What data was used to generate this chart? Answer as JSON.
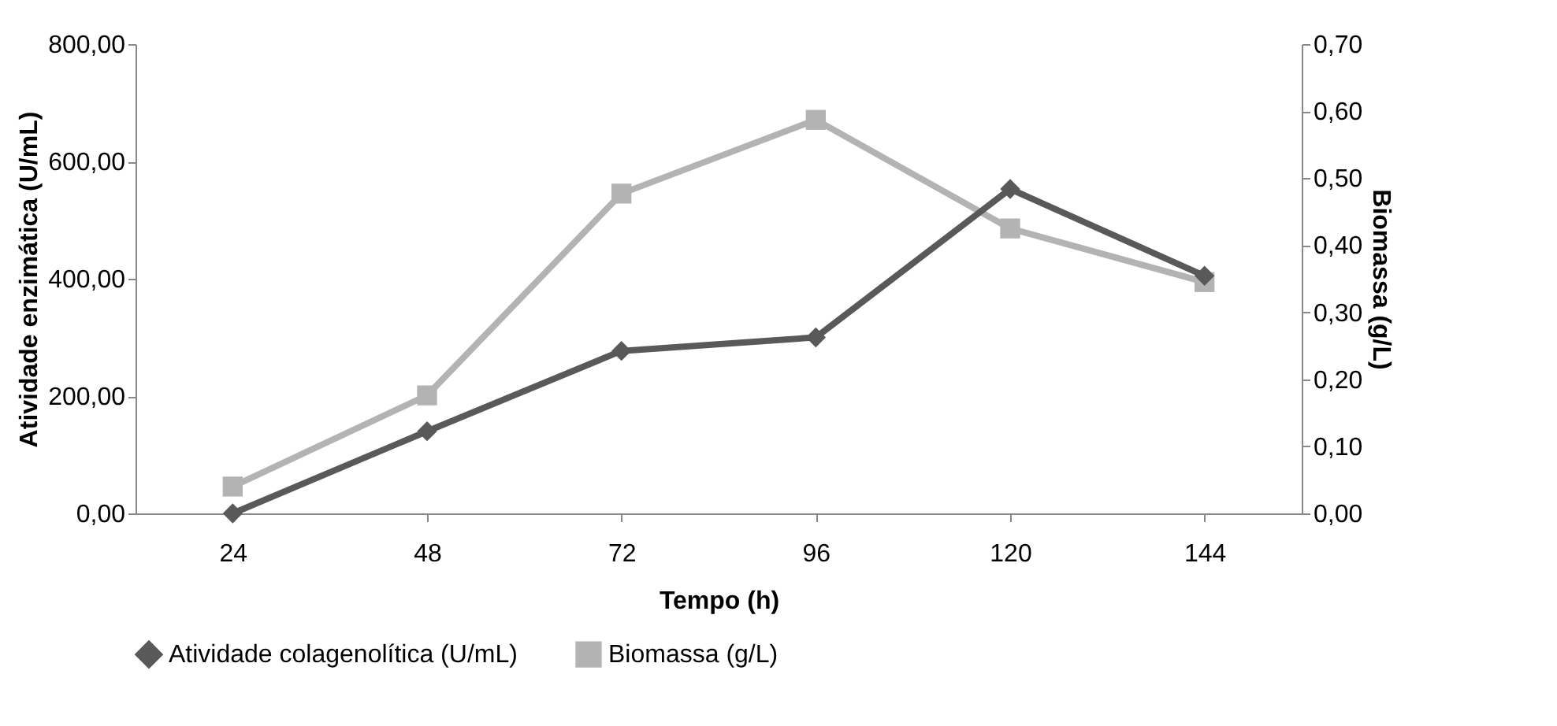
{
  "chart_data": {
    "type": "line",
    "xlabel": "Tempo (h)",
    "ylabel": "Atividade enzimática (U/mL)",
    "y2label": "Biomassa (g/L)",
    "categories": [
      "24",
      "48",
      "72",
      "96",
      "120",
      "144"
    ],
    "series": [
      {
        "name": "Atividade colagenolítica (U/mL)",
        "color": "#595959",
        "marker": "diamond",
        "values": [
          0,
          140,
          277,
          300,
          553,
          405
        ]
      },
      {
        "name": "Biomassa (g/L)",
        "color": "#b3b3b3",
        "marker": "square",
        "axis": "y2",
        "values": [
          0.04,
          0.176,
          0.477,
          0.587,
          0.425,
          0.345
        ]
      }
    ],
    "ylim": [
      0,
      800
    ],
    "yticks": [
      {
        "value": 0,
        "label": "0,00"
      },
      {
        "value": 200,
        "label": "200,00"
      },
      {
        "value": 400,
        "label": "400,00"
      },
      {
        "value": 600,
        "label": "600,00"
      },
      {
        "value": 800,
        "label": "800,00"
      }
    ],
    "y2lim": [
      0,
      0.7
    ],
    "y2ticks": [
      {
        "value": 0,
        "label": "0,00"
      },
      {
        "value": 0.1,
        "label": "0,10"
      },
      {
        "value": 0.2,
        "label": "0,20"
      },
      {
        "value": 0.3,
        "label": "0,30"
      },
      {
        "value": 0.4,
        "label": "0,40"
      },
      {
        "value": 0.5,
        "label": "0,50"
      },
      {
        "value": 0.6,
        "label": "0,60"
      },
      {
        "value": 0.7,
        "label": "0,70"
      }
    ],
    "grid": false,
    "legend": "bottom"
  }
}
